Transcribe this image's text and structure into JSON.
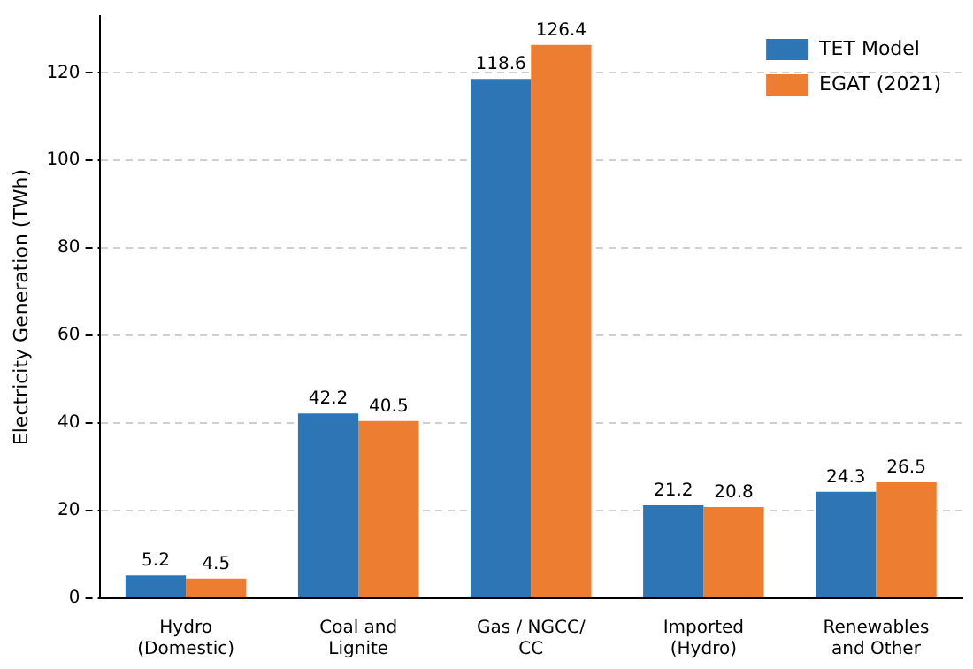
{
  "chart_data": {
    "type": "bar",
    "ylabel": "Electricity Generation (TWh)",
    "categories": [
      "Hydro\n(Domestic)",
      "Coal and\nLignite",
      "Gas / NGCC/\nCC",
      "Imported\n(Hydro)",
      "Renewables\nand Other"
    ],
    "series": [
      {
        "name": "TET Model",
        "color": "#2e75b6",
        "values": [
          5.2,
          42.2,
          118.6,
          21.2,
          24.3
        ]
      },
      {
        "name": "EGAT (2021)",
        "color": "#ed7d31",
        "values": [
          4.5,
          40.5,
          126.4,
          20.8,
          26.5
        ]
      }
    ],
    "ylim": [
      0,
      133
    ],
    "yticks": [
      0,
      20,
      40,
      60,
      80,
      100,
      120
    ],
    "grid": "y",
    "legend": "top right",
    "data_labels": true
  }
}
